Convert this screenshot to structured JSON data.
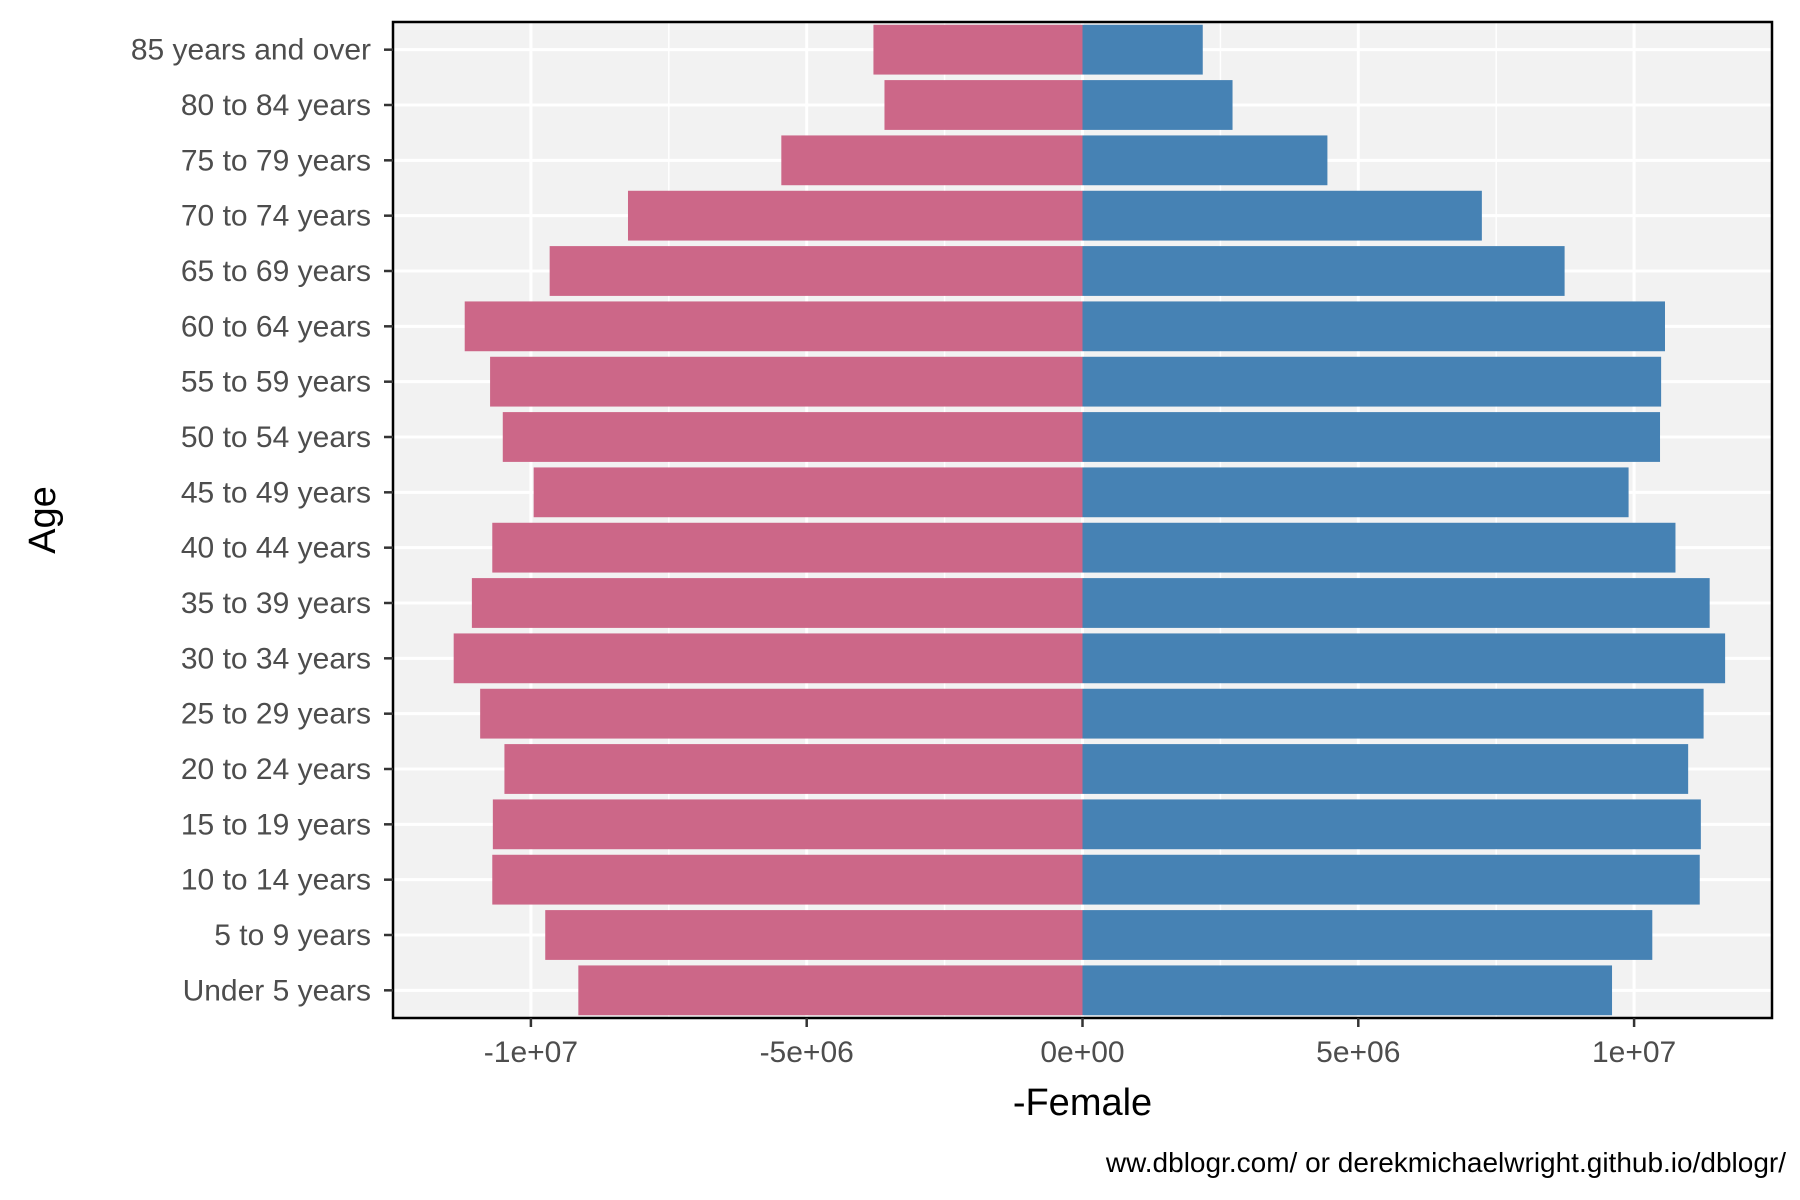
{
  "chart_data": {
    "type": "bar",
    "orientation": "horizontal",
    "xlabel": "-Female",
    "ylabel": "Age",
    "caption": "ww.dblogr.com/ or derekmichaelwright.github.io/dblogr/",
    "xlim": [
      -12500000,
      12500000
    ],
    "x_ticks": [
      -10000000,
      -5000000,
      0,
      5000000,
      10000000
    ],
    "x_tick_labels": [
      "-1e+07",
      "-5e+06",
      "0e+00",
      "5e+06",
      "1e+07"
    ],
    "grid": true,
    "legend": "none",
    "categories": [
      "Under 5 years",
      "5 to 9 years",
      "10 to 14 years",
      "15 to 19 years",
      "20 to 24 years",
      "25 to 29 years",
      "30 to 34 years",
      "35 to 39 years",
      "40 to 44 years",
      "45 to 49 years",
      "50 to 54 years",
      "55 to 59 years",
      "60 to 64 years",
      "65 to 69 years",
      "70 to 74 years",
      "75 to 79 years",
      "80 to 84 years",
      "85 years and over"
    ],
    "series": [
      {
        "color": "#cc6788",
        "values": [
          -9140000,
          -9740000,
          -10700000,
          -10690000,
          -10480000,
          -10920000,
          -11400000,
          -11070000,
          -10700000,
          -9950000,
          -10510000,
          -10740000,
          -11200000,
          -9660000,
          -8240000,
          -5460000,
          -3590000,
          -3790000
        ]
      },
      {
        "color": "#4682b4",
        "values": [
          9600000,
          10330000,
          11190000,
          11210000,
          10980000,
          11260000,
          11650000,
          11370000,
          10750000,
          9900000,
          10470000,
          10490000,
          10560000,
          8740000,
          7240000,
          4440000,
          2720000,
          2180000
        ]
      }
    ]
  }
}
